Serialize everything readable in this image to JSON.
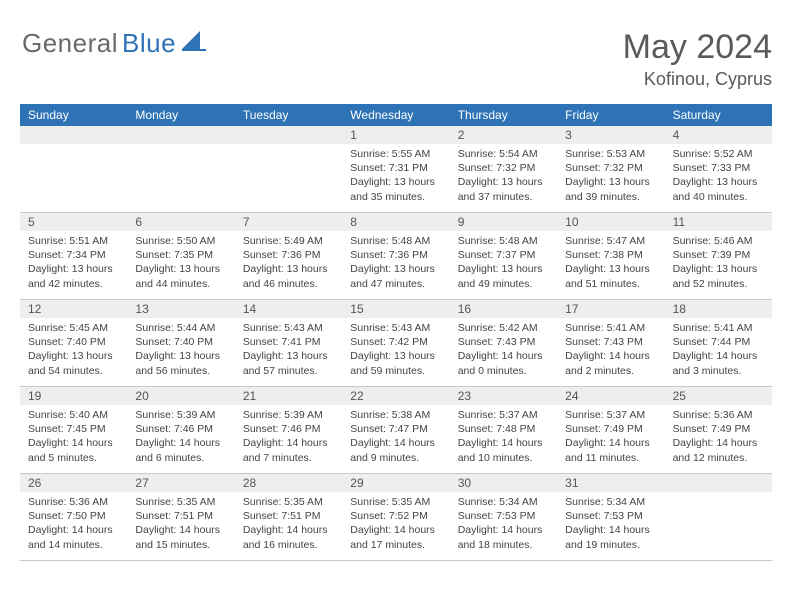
{
  "colors": {
    "header_bar": "#2f73b7",
    "daynum_band": "#eeeeee",
    "week_divider": "#c9c9c9",
    "page_bg": "#ffffff",
    "text": "#4a4a4a",
    "title_text": "#5a5a5a",
    "logo_gray": "#6a6a6a",
    "logo_blue": "#2f73b7"
  },
  "logo": {
    "part1": "General",
    "part2": "Blue"
  },
  "title": "May 2024",
  "subtitle": "Kofinou, Cyprus",
  "days_of_week": [
    "Sunday",
    "Monday",
    "Tuesday",
    "Wednesday",
    "Thursday",
    "Friday",
    "Saturday"
  ],
  "calendar": {
    "type": "calendar",
    "columns": 7,
    "rows": 5,
    "cell_font_size_pt": 10.5,
    "daynum_font_size_pt": 12,
    "dow_font_size_pt": 12
  },
  "weeks": [
    [
      null,
      null,
      null,
      {
        "n": "1",
        "sunrise": "5:55 AM",
        "sunset": "7:31 PM",
        "daylight": "13 hours and 35 minutes."
      },
      {
        "n": "2",
        "sunrise": "5:54 AM",
        "sunset": "7:32 PM",
        "daylight": "13 hours and 37 minutes."
      },
      {
        "n": "3",
        "sunrise": "5:53 AM",
        "sunset": "7:32 PM",
        "daylight": "13 hours and 39 minutes."
      },
      {
        "n": "4",
        "sunrise": "5:52 AM",
        "sunset": "7:33 PM",
        "daylight": "13 hours and 40 minutes."
      }
    ],
    [
      {
        "n": "5",
        "sunrise": "5:51 AM",
        "sunset": "7:34 PM",
        "daylight": "13 hours and 42 minutes."
      },
      {
        "n": "6",
        "sunrise": "5:50 AM",
        "sunset": "7:35 PM",
        "daylight": "13 hours and 44 minutes."
      },
      {
        "n": "7",
        "sunrise": "5:49 AM",
        "sunset": "7:36 PM",
        "daylight": "13 hours and 46 minutes."
      },
      {
        "n": "8",
        "sunrise": "5:48 AM",
        "sunset": "7:36 PM",
        "daylight": "13 hours and 47 minutes."
      },
      {
        "n": "9",
        "sunrise": "5:48 AM",
        "sunset": "7:37 PM",
        "daylight": "13 hours and 49 minutes."
      },
      {
        "n": "10",
        "sunrise": "5:47 AM",
        "sunset": "7:38 PM",
        "daylight": "13 hours and 51 minutes."
      },
      {
        "n": "11",
        "sunrise": "5:46 AM",
        "sunset": "7:39 PM",
        "daylight": "13 hours and 52 minutes."
      }
    ],
    [
      {
        "n": "12",
        "sunrise": "5:45 AM",
        "sunset": "7:40 PM",
        "daylight": "13 hours and 54 minutes."
      },
      {
        "n": "13",
        "sunrise": "5:44 AM",
        "sunset": "7:40 PM",
        "daylight": "13 hours and 56 minutes."
      },
      {
        "n": "14",
        "sunrise": "5:43 AM",
        "sunset": "7:41 PM",
        "daylight": "13 hours and 57 minutes."
      },
      {
        "n": "15",
        "sunrise": "5:43 AM",
        "sunset": "7:42 PM",
        "daylight": "13 hours and 59 minutes."
      },
      {
        "n": "16",
        "sunrise": "5:42 AM",
        "sunset": "7:43 PM",
        "daylight": "14 hours and 0 minutes."
      },
      {
        "n": "17",
        "sunrise": "5:41 AM",
        "sunset": "7:43 PM",
        "daylight": "14 hours and 2 minutes."
      },
      {
        "n": "18",
        "sunrise": "5:41 AM",
        "sunset": "7:44 PM",
        "daylight": "14 hours and 3 minutes."
      }
    ],
    [
      {
        "n": "19",
        "sunrise": "5:40 AM",
        "sunset": "7:45 PM",
        "daylight": "14 hours and 5 minutes."
      },
      {
        "n": "20",
        "sunrise": "5:39 AM",
        "sunset": "7:46 PM",
        "daylight": "14 hours and 6 minutes."
      },
      {
        "n": "21",
        "sunrise": "5:39 AM",
        "sunset": "7:46 PM",
        "daylight": "14 hours and 7 minutes."
      },
      {
        "n": "22",
        "sunrise": "5:38 AM",
        "sunset": "7:47 PM",
        "daylight": "14 hours and 9 minutes."
      },
      {
        "n": "23",
        "sunrise": "5:37 AM",
        "sunset": "7:48 PM",
        "daylight": "14 hours and 10 minutes."
      },
      {
        "n": "24",
        "sunrise": "5:37 AM",
        "sunset": "7:49 PM",
        "daylight": "14 hours and 11 minutes."
      },
      {
        "n": "25",
        "sunrise": "5:36 AM",
        "sunset": "7:49 PM",
        "daylight": "14 hours and 12 minutes."
      }
    ],
    [
      {
        "n": "26",
        "sunrise": "5:36 AM",
        "sunset": "7:50 PM",
        "daylight": "14 hours and 14 minutes."
      },
      {
        "n": "27",
        "sunrise": "5:35 AM",
        "sunset": "7:51 PM",
        "daylight": "14 hours and 15 minutes."
      },
      {
        "n": "28",
        "sunrise": "5:35 AM",
        "sunset": "7:51 PM",
        "daylight": "14 hours and 16 minutes."
      },
      {
        "n": "29",
        "sunrise": "5:35 AM",
        "sunset": "7:52 PM",
        "daylight": "14 hours and 17 minutes."
      },
      {
        "n": "30",
        "sunrise": "5:34 AM",
        "sunset": "7:53 PM",
        "daylight": "14 hours and 18 minutes."
      },
      {
        "n": "31",
        "sunrise": "5:34 AM",
        "sunset": "7:53 PM",
        "daylight": "14 hours and 19 minutes."
      },
      null
    ]
  ],
  "labels": {
    "sunrise_prefix": "Sunrise: ",
    "sunset_prefix": "Sunset: ",
    "daylight_prefix": "Daylight: "
  }
}
